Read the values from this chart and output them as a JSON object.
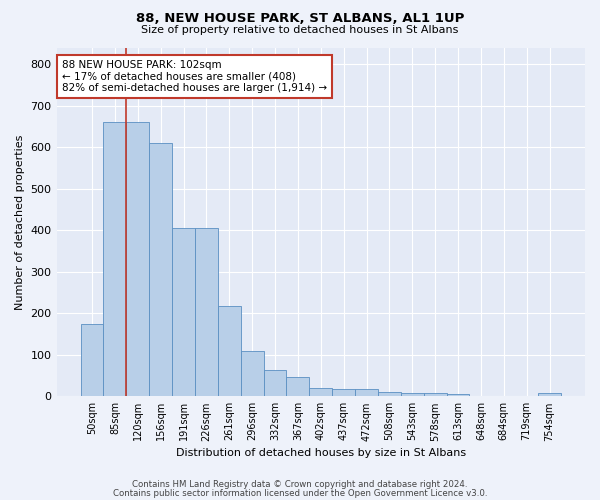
{
  "title": "88, NEW HOUSE PARK, ST ALBANS, AL1 1UP",
  "subtitle": "Size of property relative to detached houses in St Albans",
  "xlabel": "Distribution of detached houses by size in St Albans",
  "ylabel": "Number of detached properties",
  "categories": [
    "50sqm",
    "85sqm",
    "120sqm",
    "156sqm",
    "191sqm",
    "226sqm",
    "261sqm",
    "296sqm",
    "332sqm",
    "367sqm",
    "402sqm",
    "437sqm",
    "472sqm",
    "508sqm",
    "543sqm",
    "578sqm",
    "613sqm",
    "648sqm",
    "684sqm",
    "719sqm",
    "754sqm"
  ],
  "values": [
    175,
    660,
    660,
    610,
    405,
    405,
    218,
    110,
    63,
    46,
    20,
    18,
    17,
    10,
    7,
    7,
    6,
    0,
    0,
    0,
    8
  ],
  "bar_color": "#b8cfe8",
  "bar_edge_color": "#5a8fc2",
  "property_line_x": 1.5,
  "property_line_color": "#c0392b",
  "annotation_text": "88 NEW HOUSE PARK: 102sqm\n← 17% of detached houses are smaller (408)\n82% of semi-detached houses are larger (1,914) →",
  "annotation_box_color": "#ffffff",
  "annotation_box_edge": "#c0392b",
  "ylim": [
    0,
    840
  ],
  "yticks": [
    0,
    100,
    200,
    300,
    400,
    500,
    600,
    700,
    800
  ],
  "footer_line1": "Contains HM Land Registry data © Crown copyright and database right 2024.",
  "footer_line2": "Contains public sector information licensed under the Open Government Licence v3.0.",
  "bg_color": "#eef2fa",
  "plot_bg_color": "#e4eaf6"
}
